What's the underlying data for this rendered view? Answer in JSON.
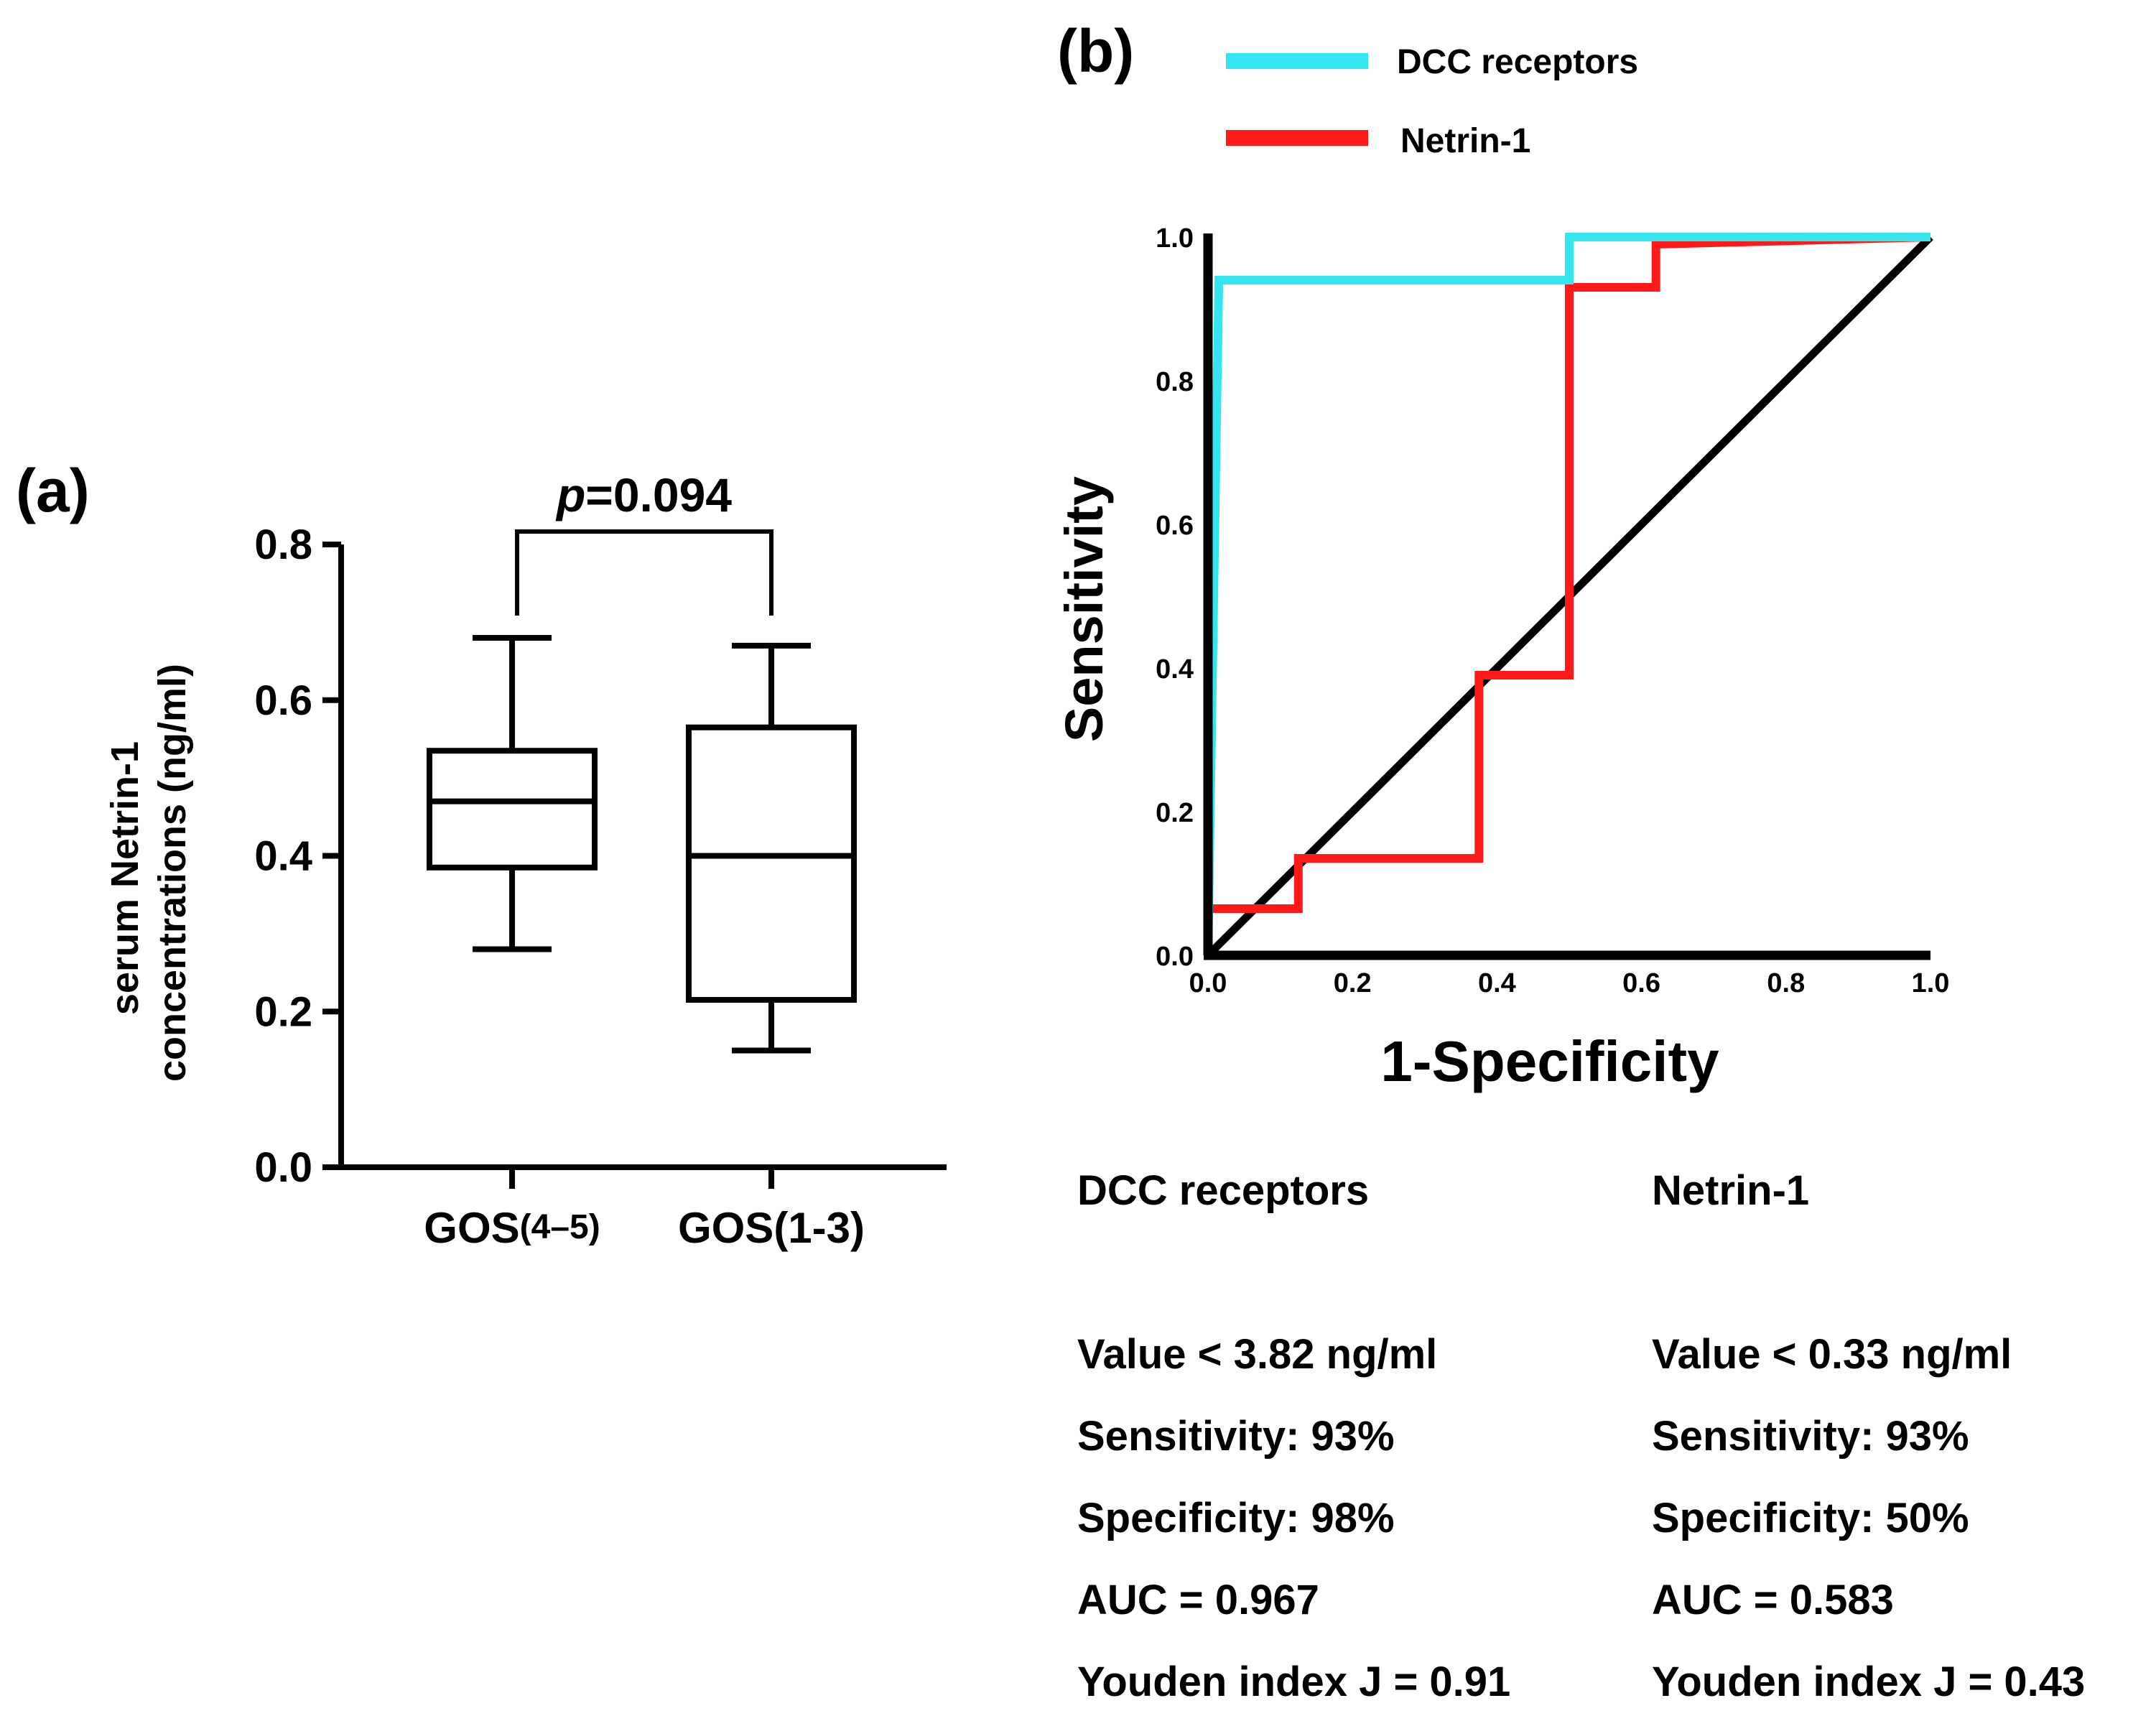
{
  "chart_data": [
    {
      "panel_label": "(a)",
      "type": "box",
      "ylabel_lines": [
        "serum Netrin-1",
        "concentrations (ng/ml)"
      ],
      "ylim": [
        0,
        0.8
      ],
      "yticks": [
        "0.0",
        "0.2",
        "0.4",
        "0.6",
        "0.8"
      ],
      "categories": [
        {
          "main": "GOS",
          "sub": "(4–5)"
        },
        {
          "main": "GOS",
          "sub": "(1-3)"
        }
      ],
      "boxes": [
        {
          "min": 0.28,
          "q1": 0.385,
          "median": 0.47,
          "q3": 0.535,
          "max": 0.68
        },
        {
          "min": 0.15,
          "q1": 0.215,
          "median": 0.4,
          "q3": 0.565,
          "max": 0.67
        }
      ],
      "annotation": {
        "italic": "p",
        "text": "=0.094"
      }
    },
    {
      "panel_label": "(b)",
      "type": "line",
      "xlabel": "1-Specificity",
      "ylabel": "Sensitivity",
      "xlim": [
        0,
        1
      ],
      "ylim": [
        0,
        1
      ],
      "xticks": [
        "0.0",
        "0.2",
        "0.4",
        "0.6",
        "0.8",
        "1.0"
      ],
      "yticks": [
        "0.0",
        "0.2",
        "0.4",
        "0.6",
        "0.8",
        "1.0"
      ],
      "series": [
        {
          "name": "DCC receptors",
          "color": "#33e5ee",
          "x": [
            0,
            0.015,
            0.5,
            0.5,
            1.0
          ],
          "y": [
            0,
            0.94,
            0.94,
            1.0,
            1.0
          ]
        },
        {
          "name": "Netrin-1",
          "color": "#ff1a1a",
          "x": [
            0,
            0,
            0.125,
            0.125,
            0.375,
            0.375,
            0.5,
            0.5,
            0.62,
            0.62,
            1.0
          ],
          "y": [
            0,
            0.065,
            0.065,
            0.135,
            0.135,
            0.39,
            0.39,
            0.93,
            0.93,
            0.99,
            1.0
          ]
        },
        {
          "name": "reference",
          "color": "#000000",
          "x": [
            0,
            1
          ],
          "y": [
            0,
            1
          ]
        }
      ],
      "legend": [
        {
          "label": "DCC receptors",
          "color": "#33e5ee"
        },
        {
          "label": "Netrin-1",
          "color": "#ff1a1a"
        }
      ]
    }
  ],
  "stats": {
    "dcc": {
      "title": "DCC receptors",
      "value": "Value < 3.82 ng/ml",
      "sensitivity": "Sensitivity: 93%",
      "specificity": "Specificity: 98%",
      "auc": "AUC = 0.967",
      "youden": "Youden index J = 0.91"
    },
    "netrin": {
      "title": "Netrin-1",
      "value": "Value < 0.33 ng/ml",
      "sensitivity": "Sensitivity: 93%",
      "specificity": "Specificity: 50%",
      "auc": "AUC = 0.583",
      "youden": "Youden index J = 0.43"
    }
  }
}
